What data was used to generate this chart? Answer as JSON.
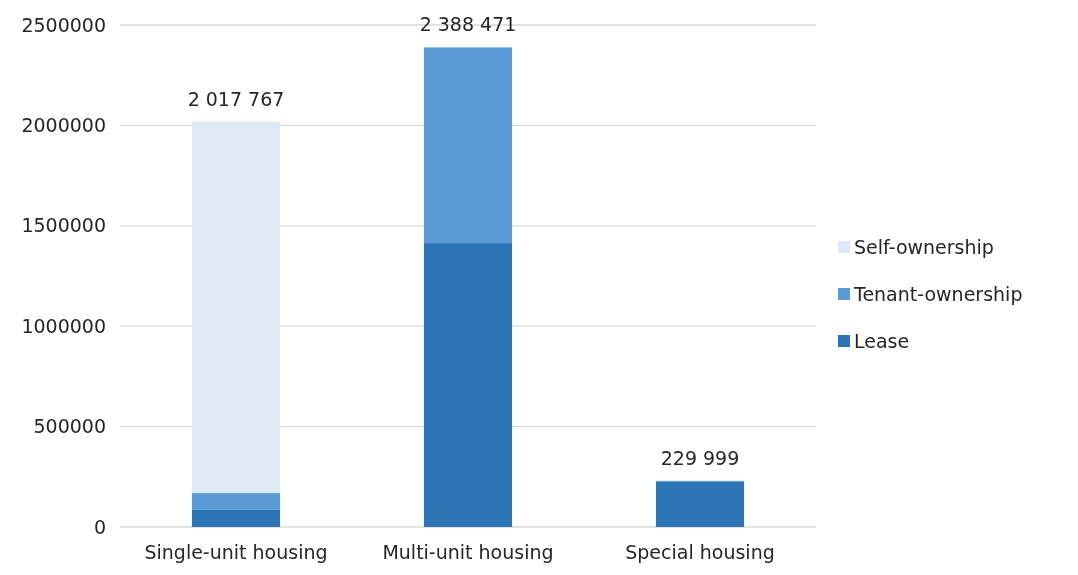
{
  "chart_data": {
    "type": "bar",
    "stacked": true,
    "categories": [
      "Single-unit housing",
      "Multi-unit housing",
      "Special housing"
    ],
    "series": [
      {
        "name": "Lease",
        "color": "#2e75b6",
        "values": [
          85000,
          1414000,
          225000
        ]
      },
      {
        "name": "Tenant-ownership",
        "color": "#5b9bd5",
        "values": [
          84000,
          974471,
          4999
        ]
      },
      {
        "name": "Self-ownership",
        "color": "#ddeaf6",
        "values": [
          1848767,
          0,
          0
        ]
      }
    ],
    "totals": [
      "2 017 767",
      "2 388 471",
      "229 999"
    ],
    "ylim": [
      0,
      2500000
    ],
    "yticks": [
      0,
      500000,
      1000000,
      1500000,
      2000000,
      2500000
    ],
    "grid": "y",
    "legend": "right"
  }
}
